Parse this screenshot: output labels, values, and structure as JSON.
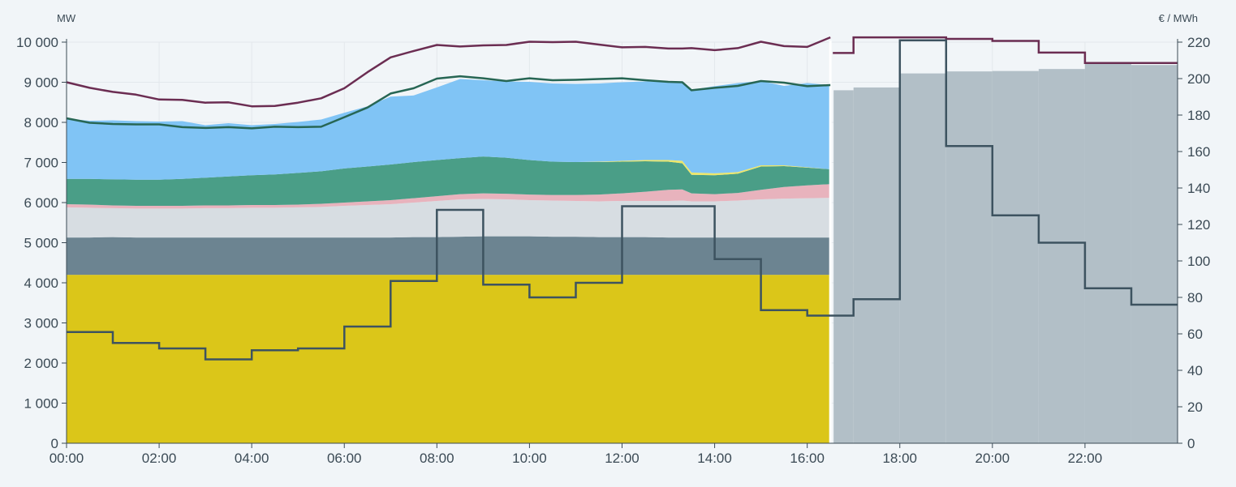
{
  "chart_data": {
    "type": "area",
    "title": "",
    "y_left": {
      "unit": "MW",
      "min": 0,
      "max": 10000,
      "ticks": [
        0,
        1000,
        2000,
        3000,
        4000,
        5000,
        6000,
        7000,
        8000,
        9000,
        10000
      ],
      "tick_labels": [
        "0",
        "1 000",
        "2 000",
        "3 000",
        "4 000",
        "5 000",
        "6 000",
        "7 000",
        "8 000",
        "9 000",
        "10 000"
      ]
    },
    "y_right": {
      "unit": "€ / MWh",
      "min": 0,
      "max": 220,
      "ticks": [
        0,
        20,
        40,
        60,
        80,
        100,
        120,
        140,
        160,
        180,
        200,
        220
      ],
      "tick_labels": [
        "0",
        "20",
        "40",
        "60",
        "80",
        "100",
        "120",
        "140",
        "160",
        "180",
        "200",
        "220"
      ]
    },
    "x_axis": {
      "min_hour": 0,
      "max_hour": 24,
      "tick_hours": [
        0,
        2,
        4,
        6,
        8,
        10,
        12,
        14,
        16,
        18,
        20,
        22
      ],
      "tick_labels": [
        "00:00",
        "02:00",
        "04:00",
        "06:00",
        "08:00",
        "10:00",
        "12:00",
        "14:00",
        "16:00",
        "18:00",
        "20:00",
        "22:00"
      ]
    },
    "now_hour": 16.5,
    "grid": true,
    "hours": [
      0,
      0.5,
      1,
      1.5,
      2,
      2.5,
      3,
      3.5,
      4,
      4.5,
      5,
      5.5,
      6,
      6.5,
      7,
      7.5,
      8,
      8.5,
      9,
      9.5,
      10,
      10.5,
      11,
      11.5,
      12,
      12.5,
      13,
      13.3,
      13.5,
      14,
      14.5,
      15,
      15.5,
      16,
      16.5
    ],
    "stack": [
      {
        "color": "#dbc619",
        "values": [
          4200,
          4200,
          4200,
          4200,
          4200,
          4200,
          4200,
          4200,
          4200,
          4200,
          4200,
          4200,
          4200,
          4200,
          4200,
          4200,
          4200,
          4200,
          4200,
          4200,
          4200,
          4200,
          4200,
          4200,
          4200,
          4200,
          4200,
          4200,
          4200,
          4200,
          4200,
          4200,
          4200,
          4200,
          4200
        ]
      },
      {
        "color": "#6c8491",
        "values": [
          930,
          930,
          940,
          930,
          930,
          930,
          930,
          930,
          930,
          930,
          930,
          930,
          930,
          930,
          930,
          940,
          940,
          950,
          960,
          960,
          960,
          950,
          950,
          940,
          940,
          940,
          930,
          930,
          930,
          930,
          930,
          930,
          930,
          930,
          930
        ]
      },
      {
        "color": "#d7dde2",
        "values": [
          750,
          740,
          720,
          720,
          720,
          720,
          730,
          730,
          740,
          740,
          750,
          760,
          790,
          810,
          830,
          860,
          900,
          930,
          930,
          920,
          900,
          900,
          890,
          890,
          900,
          900,
          910,
          920,
          900,
          900,
          920,
          950,
          970,
          980,
          990
        ]
      },
      {
        "color": "#e8b3bd",
        "values": [
          80,
          80,
          70,
          70,
          70,
          70,
          70,
          70,
          70,
          70,
          70,
          80,
          80,
          90,
          100,
          110,
          120,
          130,
          140,
          140,
          140,
          140,
          150,
          170,
          190,
          230,
          280,
          280,
          200,
          180,
          190,
          240,
          290,
          320,
          340
        ]
      },
      {
        "color": "#4a9e87",
        "values": [
          630,
          640,
          650,
          650,
          650,
          670,
          690,
          720,
          740,
          760,
          790,
          810,
          850,
          870,
          890,
          900,
          900,
          900,
          920,
          900,
          860,
          830,
          820,
          810,
          790,
          760,
          700,
          650,
          460,
          470,
          480,
          580,
          520,
          440,
          370
        ]
      },
      {
        "color": "#ede76a",
        "values": [
          0,
          0,
          0,
          0,
          0,
          0,
          0,
          0,
          0,
          0,
          0,
          0,
          0,
          0,
          0,
          0,
          0,
          0,
          0,
          0,
          0,
          0,
          0,
          10,
          20,
          30,
          40,
          60,
          60,
          50,
          40,
          30,
          20,
          10,
          0
        ]
      },
      {
        "color": "#80c4f5",
        "values": [
          1500,
          1450,
          1470,
          1460,
          1450,
          1440,
          1310,
          1330,
          1250,
          1260,
          1270,
          1290,
          1390,
          1500,
          1690,
          1660,
          1810,
          1970,
          1900,
          1900,
          1950,
          1950,
          1950,
          1950,
          1960,
          1960,
          1950,
          1960,
          2060,
          2170,
          2220,
          2100,
          1980,
          2100,
          2100
        ]
      }
    ],
    "total_line": {
      "color": "#276654",
      "values": [
        8100,
        7990,
        7960,
        7950,
        7950,
        7880,
        7860,
        7880,
        7850,
        7890,
        7880,
        7890,
        8130,
        8370,
        8720,
        8850,
        9090,
        9150,
        9100,
        9030,
        9100,
        9050,
        9060,
        9080,
        9100,
        9050,
        9010,
        9000,
        8800,
        8860,
        8910,
        9030,
        8990,
        8900,
        8930
      ]
    },
    "consumption_line": {
      "color": "#6b2d52",
      "values": [
        9000,
        8860,
        8760,
        8690,
        8570,
        8560,
        8490,
        8500,
        8400,
        8410,
        8490,
        8600,
        8850,
        9250,
        9620,
        9780,
        9930,
        9890,
        9920,
        9930,
        10010,
        10000,
        10010,
        9940,
        9870,
        9880,
        9840,
        9840,
        9850,
        9800,
        9850,
        10010,
        9900,
        9880,
        10120
      ]
    },
    "forecast_bars": {
      "color": "#b2bfc7",
      "hours": [
        16.5,
        17,
        18,
        19,
        20,
        21,
        22,
        23
      ],
      "values": [
        8800,
        8870,
        9220,
        9270,
        9280,
        9330,
        9480,
        9430
      ]
    },
    "forecast_consumption": {
      "color": "#6b2d52",
      "hours": [
        16.5,
        17,
        18,
        19,
        20,
        21,
        22,
        23
      ],
      "values": [
        9730,
        10120,
        10120,
        10080,
        10030,
        9740,
        9480,
        9480
      ]
    },
    "price_line": {
      "color": "#3d5360",
      "unit": "€ / MWh",
      "hours": [
        0,
        1,
        2,
        3,
        4,
        5,
        6,
        7,
        8,
        9,
        10,
        11,
        12,
        13,
        14,
        15,
        16,
        17,
        18,
        19,
        20,
        21,
        22,
        23
      ],
      "values": [
        61,
        55,
        52,
        46,
        51,
        52,
        64,
        89,
        128,
        87,
        80,
        88,
        130,
        130,
        101,
        73,
        70,
        79,
        221,
        163,
        125,
        110,
        85,
        76
      ]
    }
  }
}
